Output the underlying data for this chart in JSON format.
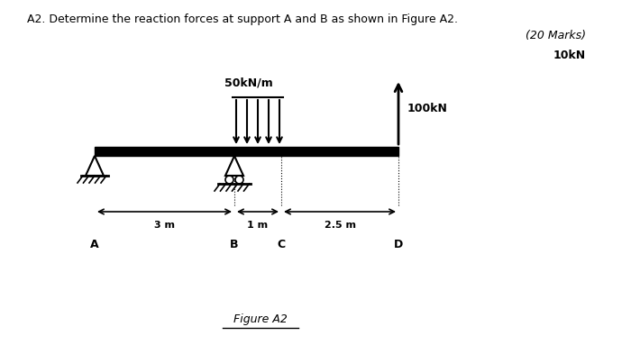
{
  "title_text": "A2. Determine the reaction forces at support A and B as shown in Figure A2.",
  "marks_text": "(20 Marks)",
  "force_label_top": "10kN",
  "load_label": "50kN/m",
  "point_load_label": "100kN",
  "figure_label": "Figure A2",
  "dim_AB": "3 m",
  "dim_BC": "1 m",
  "dim_CD": "2.5 m",
  "label_A": "A",
  "label_B": "B",
  "label_C": "C",
  "label_D": "D",
  "beam_color": "#000000",
  "bg_color": "#ffffff",
  "text_color": "#000000"
}
